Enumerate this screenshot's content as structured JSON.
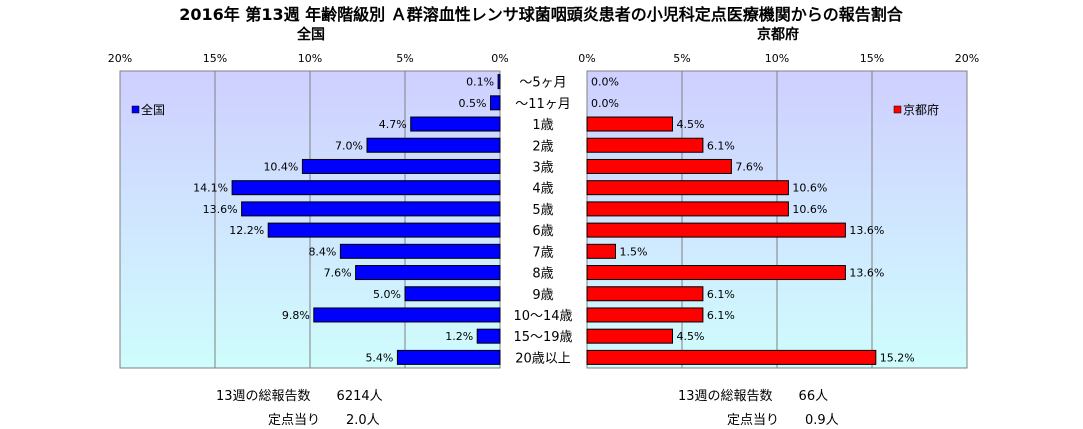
{
  "chart_data": {
    "type": "bar",
    "title": "2016年 第13週 年齢階級別 Ａ群溶血性レンサ球菌咽頭炎患者の小児科定点医療機関からの報告割合",
    "categories": [
      "～5ヶ月",
      "～11ヶ月",
      "1歳",
      "2歳",
      "3歳",
      "4歳",
      "5歳",
      "6歳",
      "7歳",
      "8歳",
      "9歳",
      "10～14歳",
      "15～19歳",
      "20歳以上"
    ],
    "series": [
      {
        "name": "全国",
        "color": "#0000ff",
        "values": [
          0.1,
          0.5,
          4.7,
          7.0,
          10.4,
          14.1,
          13.6,
          12.2,
          8.4,
          7.6,
          5.0,
          9.8,
          1.2,
          5.4
        ]
      },
      {
        "name": "京都府",
        "color": "#ff0000",
        "values": [
          0.0,
          0.0,
          4.5,
          6.1,
          7.6,
          10.6,
          10.6,
          13.6,
          1.5,
          13.6,
          6.1,
          6.1,
          4.5,
          15.2
        ]
      }
    ],
    "panels": [
      {
        "title": "全国",
        "legend": "全国",
        "ticks": [
          "20%",
          "15%",
          "10%",
          "5%",
          "0%"
        ],
        "xlim": [
          0,
          20
        ],
        "direction": "reversed"
      },
      {
        "title": "京都府",
        "legend": "京都府",
        "ticks": [
          "0%",
          "5%",
          "10%",
          "15%",
          "20%"
        ],
        "xlim": [
          0,
          20
        ],
        "direction": "normal"
      }
    ],
    "data_labels": {
      "national": [
        "0.1%",
        "0.5%",
        "4.7%",
        "7.0%",
        "10.4%",
        "14.1%",
        "13.6%",
        "12.2%",
        "8.4%",
        "7.6%",
        "5.0%",
        "9.8%",
        "1.2%",
        "5.4%"
      ],
      "kyoto": [
        "0.0%",
        "0.0%",
        "4.5%",
        "6.1%",
        "7.6%",
        "10.6%",
        "10.6%",
        "13.6%",
        "1.5%",
        "13.6%",
        "6.1%",
        "6.1%",
        "4.5%",
        "15.2%"
      ]
    },
    "grid": true,
    "legend_position": "top-left / top-right inside panels"
  },
  "stats": {
    "national_total": "13週の総報告数　　6214人",
    "national_per": "定点当り　　2.0人",
    "kyoto_total": "13週の総報告数　　66人",
    "kyoto_per": "定点当り　　0.9人"
  },
  "colors": {
    "plot_bg_top": "#cfcfff",
    "plot_bg_bottom": "#cffdfd",
    "national_bar": "#0000ff",
    "kyoto_bar": "#ff0000"
  }
}
